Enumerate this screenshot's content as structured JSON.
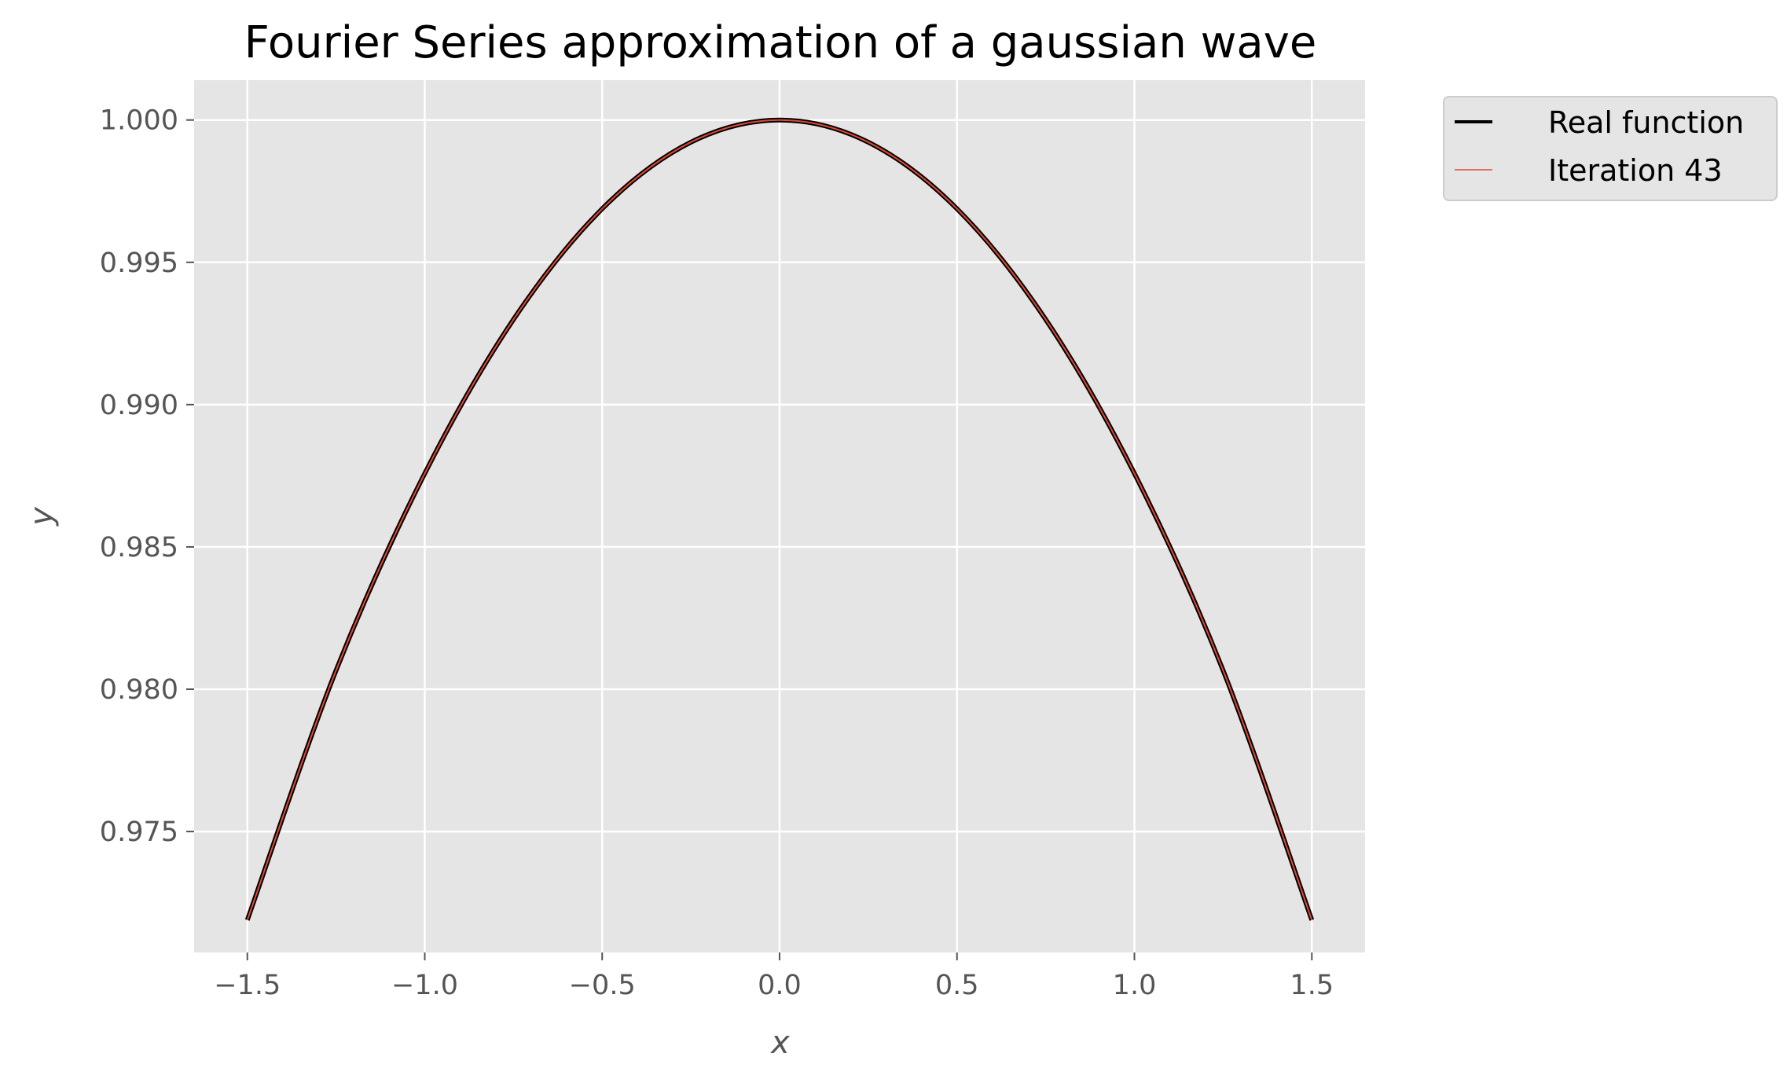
{
  "chart_data": {
    "type": "line",
    "title": "Fourier Series approximation of a gaussian wave",
    "xlabel": "x",
    "ylabel": "y",
    "xlim": [
      -1.65,
      1.65
    ],
    "ylim": [
      0.97075,
      1.0014
    ],
    "xticks": [
      -1.5,
      -1.0,
      -0.5,
      0.0,
      0.5,
      1.0,
      1.5
    ],
    "xtick_labels": [
      "−1.5",
      "−1.0",
      "−0.5",
      "0.0",
      "0.5",
      "1.0",
      "1.5"
    ],
    "yticks": [
      0.975,
      0.98,
      0.985,
      0.99,
      0.995,
      1.0
    ],
    "ytick_labels": [
      "0.975",
      "0.980",
      "0.985",
      "0.990",
      "0.995",
      "1.000"
    ],
    "grid": true,
    "legend_placement": "outside-top-right",
    "series": [
      {
        "name": "Real function",
        "color": "#000000",
        "x": [
          -1.5,
          -1.25,
          -1.0,
          -0.75,
          -0.5,
          -0.25,
          0.0,
          0.25,
          0.5,
          0.75,
          1.0,
          1.25,
          1.5
        ],
        "y": [
          0.97189,
          0.98066,
          0.98758,
          0.99299,
          0.99688,
          0.99922,
          1.0,
          0.99922,
          0.99688,
          0.99299,
          0.98758,
          0.98066,
          0.97189
        ]
      },
      {
        "name": "Iteration 43",
        "color": "#e24a33",
        "x": [
          -1.5,
          -1.25,
          -1.0,
          -0.75,
          -0.5,
          -0.25,
          0.0,
          0.25,
          0.5,
          0.75,
          1.0,
          1.25,
          1.5
        ],
        "y": [
          0.97189,
          0.98066,
          0.98758,
          0.99299,
          0.99688,
          0.99922,
          1.0,
          0.99922,
          0.99688,
          0.99299,
          0.98758,
          0.98066,
          0.97189
        ]
      }
    ]
  }
}
